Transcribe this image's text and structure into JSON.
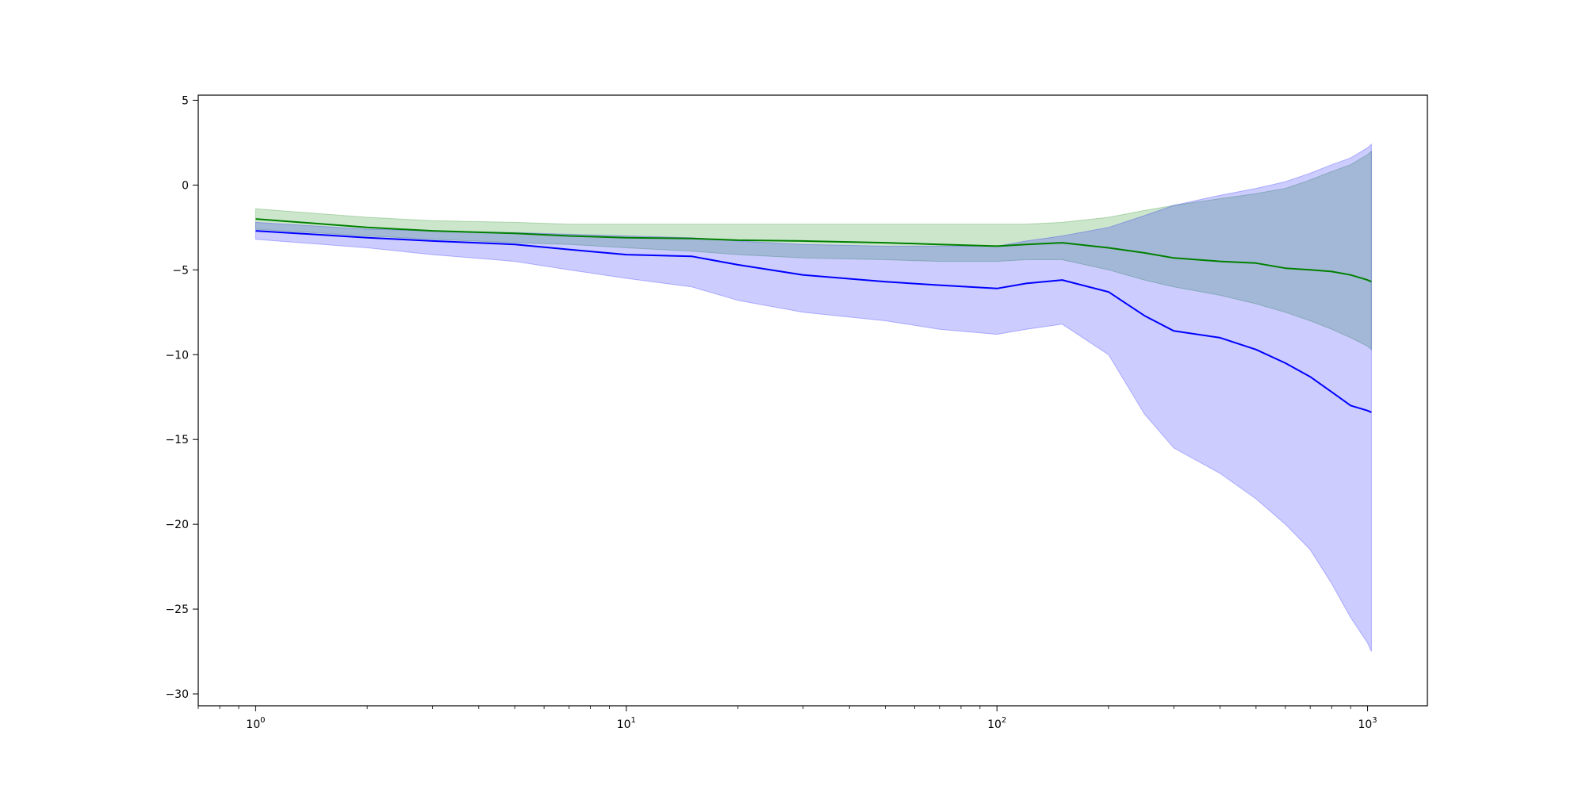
{
  "chart_data": {
    "type": "line",
    "title": "",
    "xlabel": "",
    "ylabel": "",
    "xscale": "log",
    "xlim": [
      0.7,
      1450
    ],
    "ylim": [
      -30.7,
      5.3
    ],
    "grid": false,
    "legend": "none",
    "xticks": [
      {
        "value": 1,
        "base": "10",
        "exp": "0"
      },
      {
        "value": 10,
        "base": "10",
        "exp": "1"
      },
      {
        "value": 100,
        "base": "10",
        "exp": "2"
      },
      {
        "value": 1000,
        "base": "10",
        "exp": "3"
      }
    ],
    "yticks": [
      {
        "value": 5,
        "label": "5"
      },
      {
        "value": 0,
        "label": "0"
      },
      {
        "value": -5,
        "label": "−5"
      },
      {
        "value": -10,
        "label": "−10"
      },
      {
        "value": -15,
        "label": "−15"
      },
      {
        "value": -20,
        "label": "−20"
      },
      {
        "value": -25,
        "label": "−25"
      },
      {
        "value": -30,
        "label": "−30"
      }
    ],
    "x": [
      1,
      2,
      3,
      5,
      7,
      10,
      15,
      20,
      30,
      50,
      70,
      100,
      120,
      150,
      200,
      250,
      300,
      400,
      500,
      600,
      700,
      800,
      900,
      1000,
      1024
    ],
    "series": [
      {
        "color": "#008000",
        "band_color": "#008000",
        "mean": [
          -2.0,
          -2.5,
          -2.7,
          -2.85,
          -3.0,
          -3.1,
          -3.15,
          -3.25,
          -3.3,
          -3.4,
          -3.5,
          -3.6,
          -3.5,
          -3.4,
          -3.7,
          -4.0,
          -4.3,
          -4.5,
          -4.6,
          -4.9,
          -5.0,
          -5.1,
          -5.3,
          -5.6,
          -5.7
        ],
        "lower": [
          -2.6,
          -3.0,
          -3.2,
          -3.4,
          -3.5,
          -3.7,
          -3.9,
          -4.1,
          -4.3,
          -4.4,
          -4.5,
          -4.5,
          -4.4,
          -4.4,
          -5.0,
          -5.6,
          -6.0,
          -6.5,
          -7.0,
          -7.5,
          -8.0,
          -8.5,
          -9.0,
          -9.5,
          -9.7
        ],
        "upper": [
          -1.4,
          -1.9,
          -2.1,
          -2.2,
          -2.3,
          -2.3,
          -2.3,
          -2.3,
          -2.3,
          -2.3,
          -2.3,
          -2.3,
          -2.3,
          -2.2,
          -1.9,
          -1.5,
          -1.2,
          -0.8,
          -0.5,
          -0.2,
          0.3,
          0.8,
          1.2,
          1.8,
          2.0
        ]
      },
      {
        "color": "#0000ff",
        "band_color": "#0000ff",
        "mean": [
          -2.7,
          -3.1,
          -3.3,
          -3.5,
          -3.8,
          -4.1,
          -4.2,
          -4.7,
          -5.3,
          -5.7,
          -5.9,
          -6.1,
          -5.8,
          -5.6,
          -6.3,
          -7.7,
          -8.6,
          -9.0,
          -9.7,
          -10.5,
          -11.3,
          -12.2,
          -13.0,
          -13.3,
          -13.4
        ],
        "lower": [
          -3.2,
          -3.7,
          -4.1,
          -4.5,
          -5.0,
          -5.5,
          -6.0,
          -6.8,
          -7.5,
          -8.0,
          -8.5,
          -8.8,
          -8.5,
          -8.2,
          -10.0,
          -13.5,
          -15.5,
          -17.0,
          -18.5,
          -20.0,
          -21.5,
          -23.5,
          -25.5,
          -27.0,
          -27.5
        ],
        "upper": [
          -2.2,
          -2.6,
          -2.7,
          -2.8,
          -2.9,
          -3.0,
          -3.1,
          -3.3,
          -3.5,
          -3.6,
          -3.6,
          -3.6,
          -3.3,
          -3.0,
          -2.5,
          -1.8,
          -1.2,
          -0.6,
          -0.2,
          0.2,
          0.7,
          1.2,
          1.6,
          2.2,
          2.4
        ]
      }
    ]
  }
}
